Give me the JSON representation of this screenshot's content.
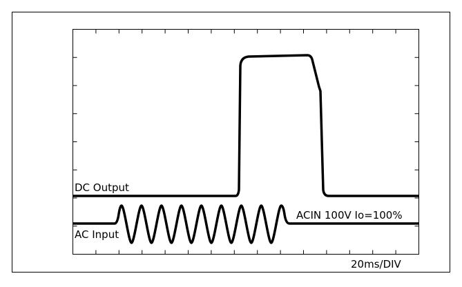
{
  "labels": {
    "dc_output": "DC Output",
    "ac_input": "AC Input",
    "condition": "ACIN 100V Io=100%",
    "time_scale": "20ms/DIV"
  }
}
